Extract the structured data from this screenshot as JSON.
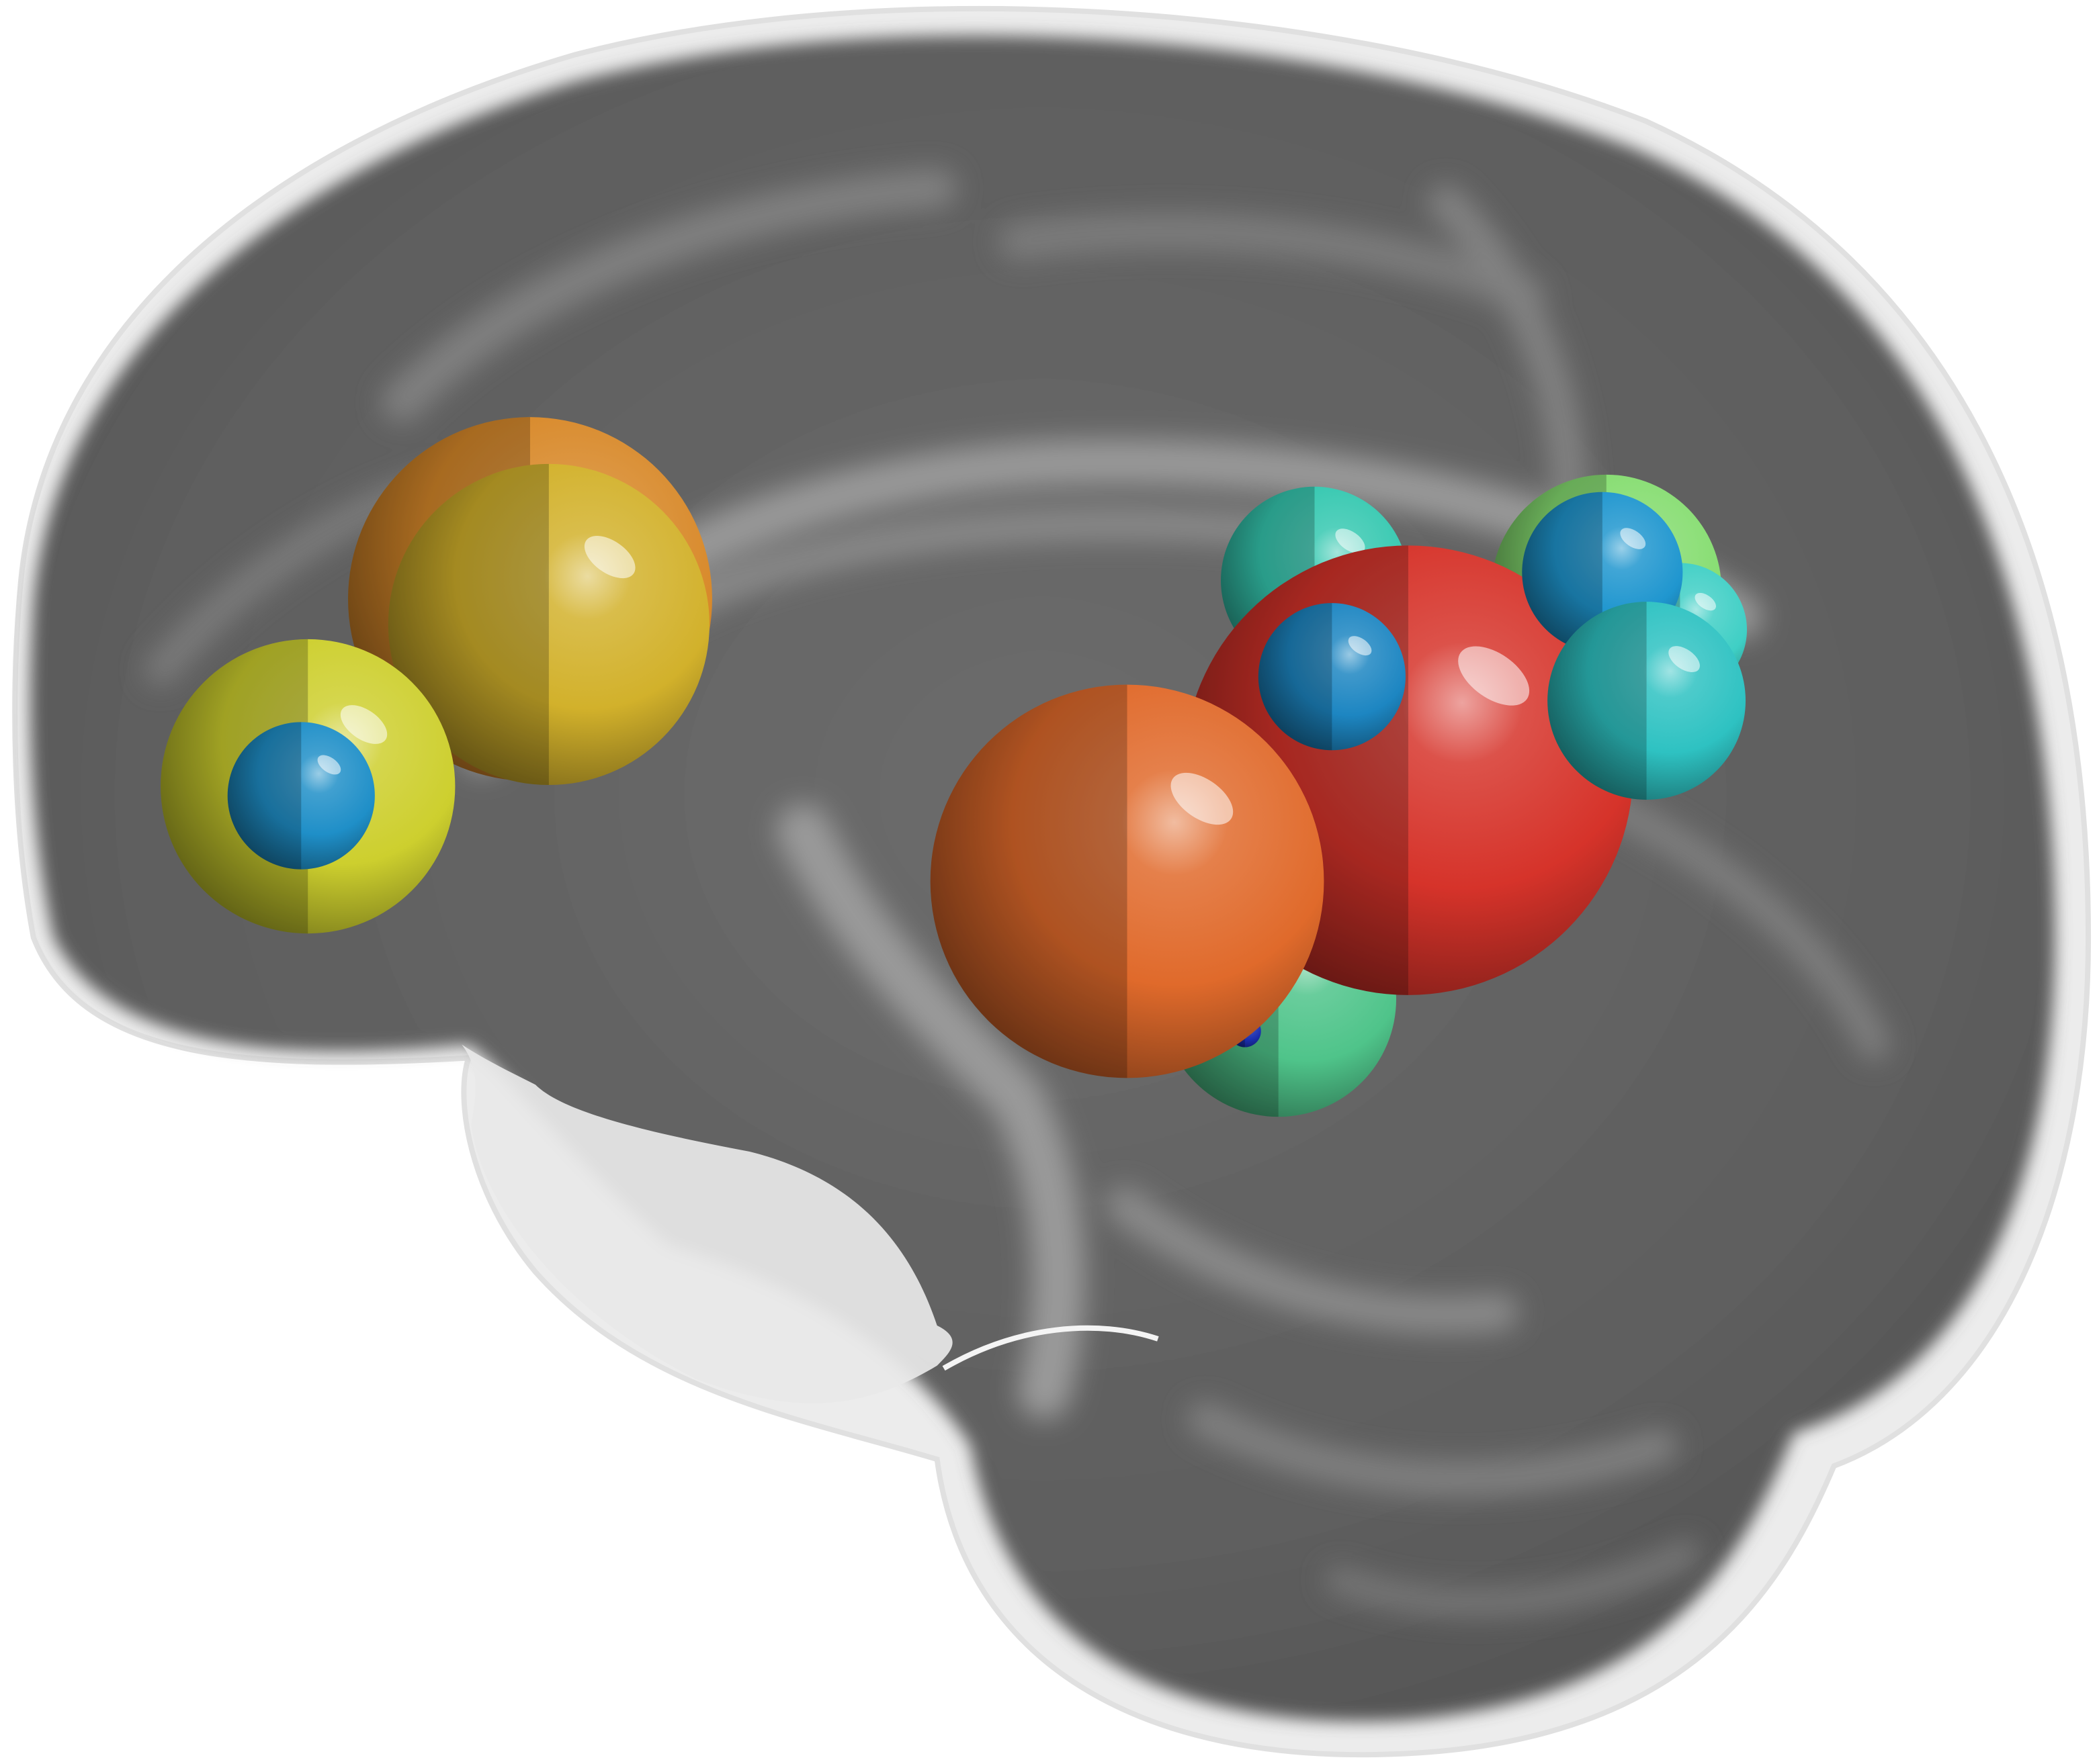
{
  "scene": {
    "background": "#ffffff",
    "brain_tissue_color": "#626262",
    "brain_highlight_color": "#9a9a9a",
    "shadow_overlay_color": "#e6e6e6"
  },
  "spheres": [
    {
      "name": "sphere-orange-frontal-back",
      "color": "#d8892a"
    },
    {
      "name": "sphere-gold-frontal",
      "color": "#d2b12b"
    },
    {
      "name": "sphere-yellow-frontal",
      "color": "#cdcf2e"
    },
    {
      "name": "sphere-blue-frontal",
      "color": "#1f8fc8"
    },
    {
      "name": "sphere-teal-parietal-top",
      "color": "#35c8b0"
    },
    {
      "name": "sphere-lightgreen-parietal",
      "color": "#86dd71"
    },
    {
      "name": "sphere-teal-parietal-right",
      "color": "#3fcfc5"
    },
    {
      "name": "sphere-green-lower",
      "color": "#4fc48a"
    },
    {
      "name": "sphere-darkblue-lower",
      "color": "#1b2fb0"
    },
    {
      "name": "sphere-red-parietal",
      "color": "#d6332a"
    },
    {
      "name": "sphere-blue-parietal-top",
      "color": "#1f96cf"
    },
    {
      "name": "sphere-teal-parietal-lower",
      "color": "#2ec2c2"
    },
    {
      "name": "sphere-blue-parietal-center",
      "color": "#1d86c2"
    },
    {
      "name": "sphere-orange-central",
      "color": "#e06a2b"
    }
  ]
}
